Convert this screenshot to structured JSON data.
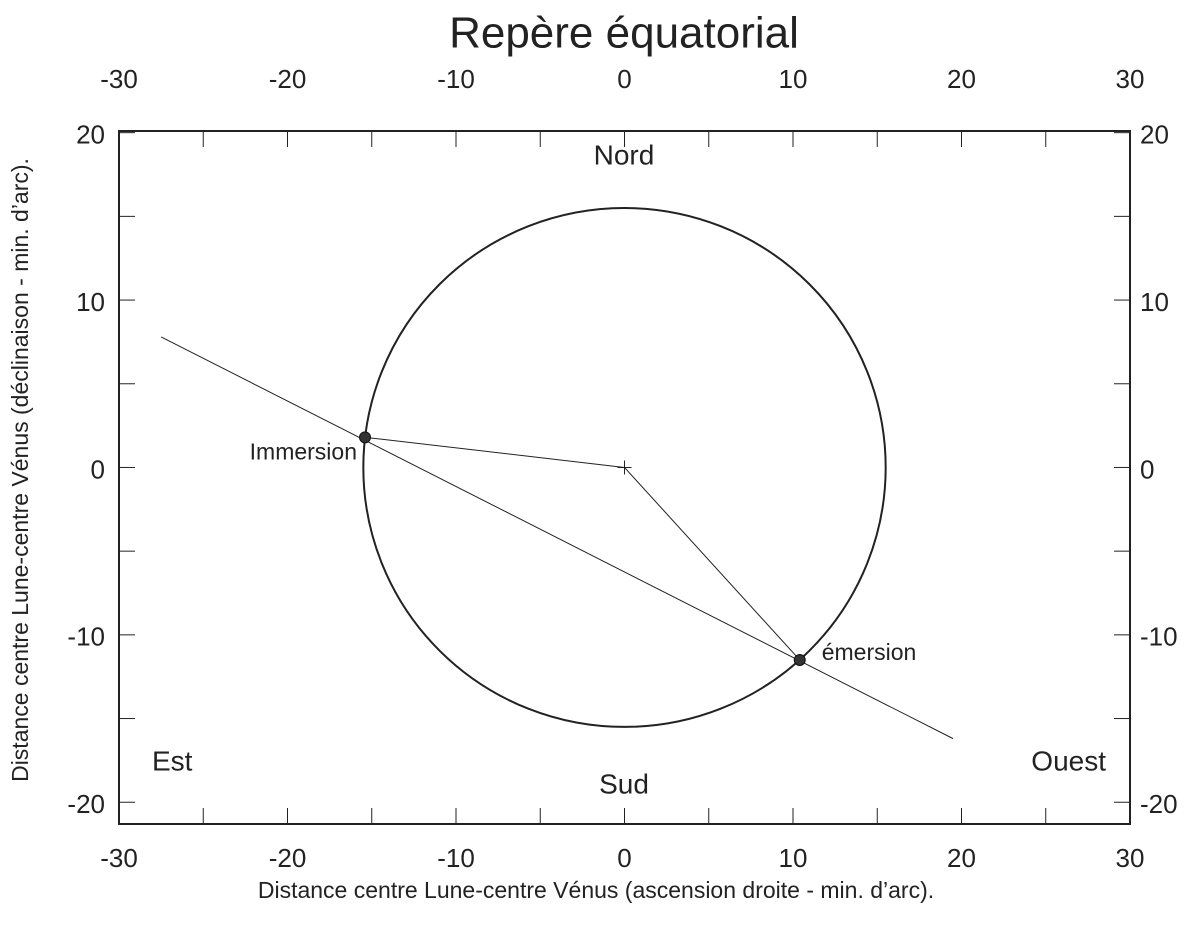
{
  "chart_data": {
    "type": "scatter",
    "title": "Repère équatorial",
    "xlabel": "Distance centre Lune-centre Vénus (ascension droite - min. d’arc).",
    "ylabel": "Distance centre Lune-centre Vénus (déclinaison - min. d’arc).",
    "xlim": [
      -30,
      30
    ],
    "ylim": [
      -21.3,
      20.1
    ],
    "xticks": [
      -30,
      -20,
      -10,
      0,
      10,
      20,
      30
    ],
    "yticks": [
      -20,
      -10,
      0,
      10,
      20
    ],
    "xminor": [
      -25,
      -15,
      -5,
      5,
      15,
      25
    ],
    "yminor": [
      -15,
      -5,
      5,
      15
    ],
    "circle_radius": 15.5,
    "center": {
      "x": 0,
      "y": 0
    },
    "track": {
      "x": [
        -27.5,
        19.5
      ],
      "y": [
        7.8,
        -16.2
      ]
    },
    "points": {
      "labels": [
        "Immersion",
        "émersion"
      ],
      "x": [
        -15.4,
        10.4
      ],
      "y": [
        1.8,
        -11.5
      ],
      "color": "#333333"
    },
    "annotations": [
      "Nord",
      "Sud",
      "Est",
      "Ouest"
    ]
  }
}
